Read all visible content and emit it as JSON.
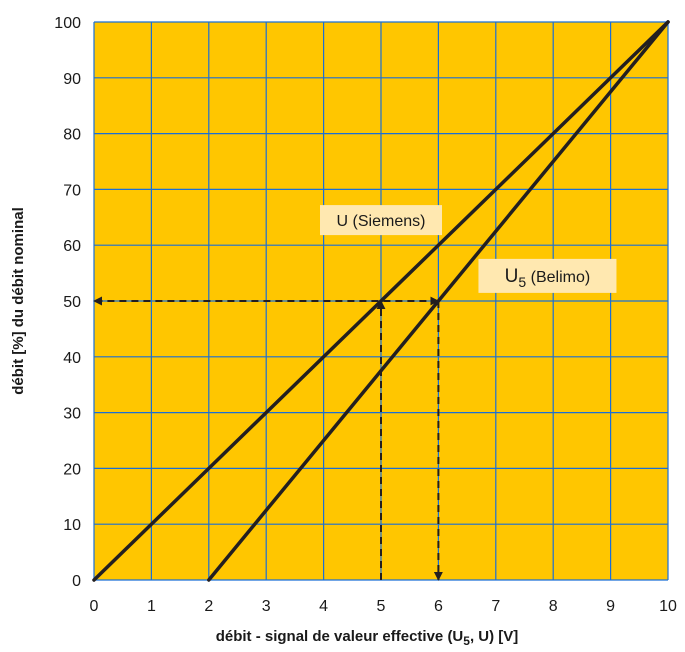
{
  "chart_data": {
    "type": "line",
    "xlabel": "débit - signal de valeur effective (U5, U) [V]",
    "xlabel_parts": {
      "before": "débit - signal de valeur effective (U",
      "sub": "5",
      "after": ", U) [V]"
    },
    "ylabel": "débit [%] du débit nominal",
    "xlim": [
      0,
      10
    ],
    "ylim": [
      0,
      100
    ],
    "xticks": [
      "0",
      "1",
      "2",
      "3",
      "4",
      "5",
      "6",
      "7",
      "8",
      "9",
      "10"
    ],
    "yticks": [
      "0",
      "10",
      "20",
      "30",
      "40",
      "50",
      "60",
      "70",
      "80",
      "90",
      "100"
    ],
    "grid": true,
    "series": [
      {
        "name": "U (Siemens)",
        "x": [
          0,
          10
        ],
        "y": [
          0,
          100
        ]
      },
      {
        "name": "U5 (Belimo)",
        "name_parts": {
          "main": "U",
          "sub": "5",
          "rest": " (Belimo)"
        },
        "x": [
          2,
          10
        ],
        "y": [
          0,
          100
        ]
      }
    ],
    "reference_lines": [
      {
        "points": [
          [
            5,
            0
          ],
          [
            5,
            50
          ]
        ],
        "arrow": "end"
      },
      {
        "points": [
          [
            6,
            50
          ],
          [
            6,
            0
          ]
        ],
        "arrow": "end"
      },
      {
        "points": [
          [
            6,
            50
          ],
          [
            0,
            50
          ]
        ],
        "arrow": "both"
      }
    ],
    "colors": {
      "plot_background": "#FFC600",
      "grid": "#1a6fd6",
      "series_line": "#231f20",
      "label_box": "#FFE8B0"
    }
  }
}
